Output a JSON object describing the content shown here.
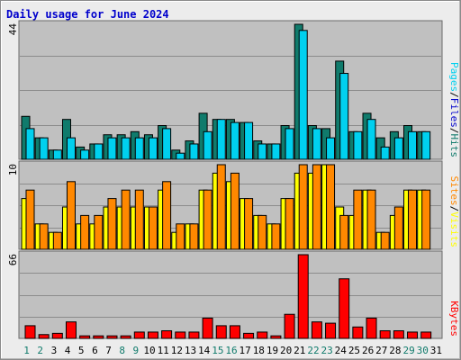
{
  "title": "Daily usage for June 2024",
  "colors": {
    "hits": "#107b6c",
    "files": "#00d0ef",
    "pages": "#00d0ef",
    "visits": "#ff8800",
    "sites": "#ffff00",
    "kbytes": "#ff0000",
    "weekend": "#107b6c",
    "weekday": "#000000",
    "plot_bg": "#c0c0c0",
    "slash": "#000000"
  },
  "chart_data": [
    {
      "type": "bar",
      "name": "hits-files-pages",
      "max_label": "44",
      "legend": [
        {
          "key": "pages",
          "label": "Pages",
          "color": "#00d0ef"
        },
        {
          "key": "files",
          "label": "Files",
          "color": "#0000cc"
        },
        {
          "key": "hits",
          "label": "Hits",
          "color": "#107b6c"
        }
      ],
      "ymax": 44,
      "series": [
        {
          "key": "hits",
          "values": [
            14,
            7,
            3,
            13,
            4,
            5,
            8,
            8,
            9,
            8,
            11,
            3,
            6,
            15,
            13,
            13,
            12,
            6,
            5,
            11,
            44,
            11,
            10,
            32,
            9,
            15,
            7,
            9,
            11,
            9
          ]
        },
        {
          "key": "files",
          "values": [
            10,
            7,
            3,
            7,
            3,
            5,
            7,
            7,
            7,
            7,
            10,
            2,
            5,
            9,
            13,
            12,
            12,
            5,
            5,
            10,
            42,
            10,
            7,
            28,
            9,
            13,
            4,
            7,
            9,
            9
          ]
        }
      ]
    },
    {
      "type": "bar",
      "name": "visits-sites",
      "max_label": "10",
      "legend": [
        {
          "key": "sites",
          "label": "Sites",
          "color": "#ff8800"
        },
        {
          "key": "visits",
          "label": "Visits",
          "color": "#ffff00"
        }
      ],
      "ymax": 10,
      "series": [
        {
          "key": "sites",
          "values": [
            6,
            3,
            2,
            5,
            3,
            3,
            5,
            5,
            5,
            5,
            7,
            2,
            3,
            7,
            9,
            8,
            6,
            4,
            3,
            6,
            9,
            9,
            10,
            5,
            4,
            7,
            2,
            4,
            7,
            7
          ]
        },
        {
          "key": "visits",
          "values": [
            7,
            3,
            2,
            8,
            4,
            4,
            6,
            7,
            7,
            5,
            8,
            3,
            3,
            7,
            10,
            9,
            6,
            4,
            3,
            6,
            10,
            10,
            10,
            4,
            7,
            7,
            2,
            5,
            7,
            7
          ]
        }
      ]
    },
    {
      "type": "bar",
      "name": "kbytes",
      "max_label": "66",
      "legend": [
        {
          "key": "kbytes",
          "label": "KBytes",
          "color": "#ff0000"
        }
      ],
      "ymax": 66,
      "series": [
        {
          "key": "kbytes",
          "values": [
            10,
            3,
            4,
            13,
            2,
            2,
            2,
            2,
            5,
            5,
            6,
            5,
            5,
            16,
            10,
            10,
            4,
            5,
            2,
            19,
            66,
            13,
            12,
            47,
            9,
            16,
            6,
            6,
            5,
            5
          ]
        }
      ]
    }
  ],
  "x_axis": {
    "days": [
      "1",
      "2",
      "3",
      "4",
      "5",
      "6",
      "7",
      "8",
      "9",
      "10",
      "11",
      "12",
      "13",
      "14",
      "15",
      "16",
      "17",
      "18",
      "19",
      "20",
      "21",
      "22",
      "23",
      "24",
      "25",
      "26",
      "27",
      "28",
      "29",
      "30",
      "31"
    ],
    "weekend_days": [
      1,
      2,
      8,
      9,
      15,
      16,
      22,
      23,
      29,
      30
    ]
  }
}
